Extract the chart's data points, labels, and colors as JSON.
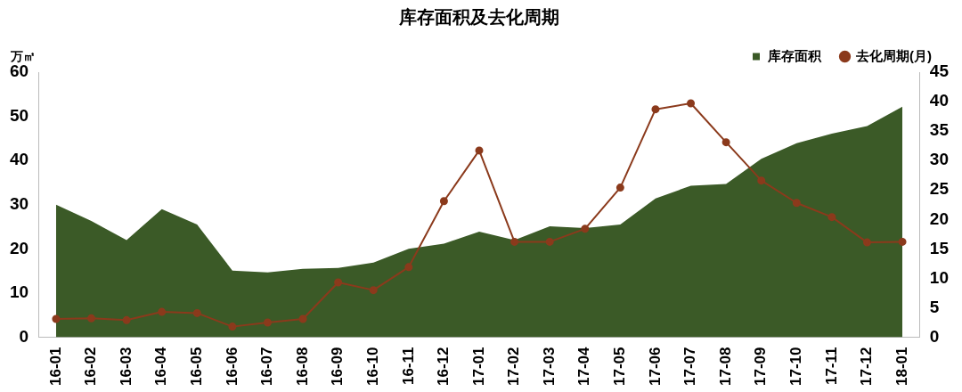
{
  "chart_data": {
    "type": "area",
    "title": "库存面积及去化周期",
    "ylabel": "万㎡",
    "categories": [
      "16-01",
      "16-02",
      "16-03",
      "16-04",
      "16-05",
      "16-06",
      "16-07",
      "16-08",
      "16-09",
      "16-10",
      "16-11",
      "16-12",
      "17-01",
      "17-02",
      "17-03",
      "17-04",
      "17-05",
      "17-06",
      "17-07",
      "17-08",
      "17-09",
      "17-10",
      "17-11",
      "17-12",
      "18-01"
    ],
    "series": [
      {
        "name": "库存面积",
        "color": "#3b5a27",
        "values": [
          30,
          26.3,
          22,
          29,
          25.5,
          15.1,
          14.7,
          15.5,
          15.7,
          16.9,
          20,
          21.2,
          23.9,
          22,
          25.1,
          24.7,
          25.5,
          31.4,
          34.3,
          34.7,
          40.4,
          43.9,
          46.1,
          47.8,
          52.2
        ]
      },
      {
        "name": "去化周期(月)",
        "type": "line",
        "axis": "y2",
        "color": "#8b3a1c",
        "marker": "circle",
        "values": [
          3.1,
          3.2,
          2.9,
          4.3,
          4.1,
          1.8,
          2.5,
          3.1,
          9.3,
          8,
          11.9,
          23.1,
          31.7,
          16.2,
          16.2,
          18.4,
          25.4,
          38.7,
          39.7,
          33.1,
          26.6,
          22.8,
          20.4,
          16.1,
          16.2
        ]
      }
    ],
    "ylim": [
      0,
      60
    ],
    "yticks": [
      0,
      10,
      20,
      30,
      40,
      50,
      60
    ],
    "y2lim": [
      0,
      45
    ],
    "y2ticks": [
      0,
      5,
      10,
      15,
      20,
      25,
      30,
      35,
      40,
      45
    ],
    "grid": false,
    "legend": "top right"
  }
}
